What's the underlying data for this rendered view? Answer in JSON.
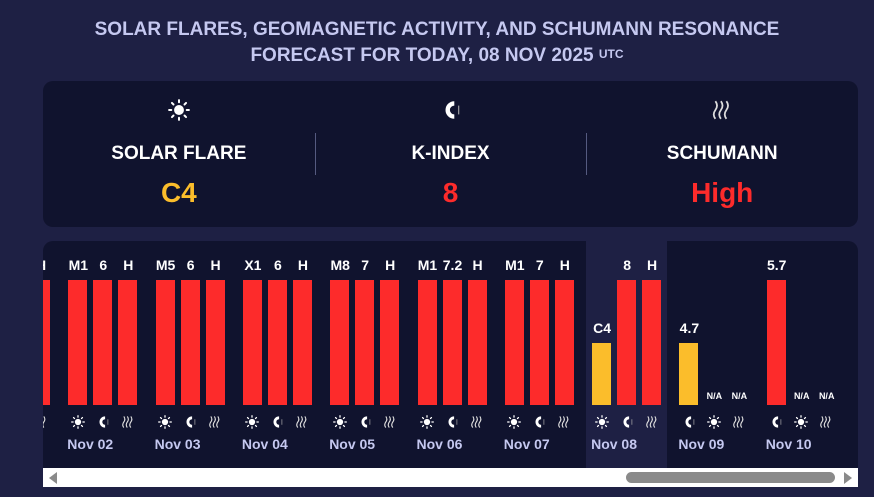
{
  "title": {
    "line1": "SOLAR FLARES, GEOMAGNETIC ACTIVITY, AND SCHUMANN RESONANCE",
    "line2": "FORECAST FOR TODAY, 08 NOV 2025",
    "tz": "UTC"
  },
  "summary": [
    {
      "icon": "sun-icon",
      "label": "SOLAR FLARE",
      "value": "C4",
      "color": "#fbbd2b"
    },
    {
      "icon": "magnet-icon",
      "label": "K-INDEX",
      "value": "8",
      "color": "#fd2b2b"
    },
    {
      "icon": "waves-icon",
      "label": "SCHUMANN",
      "value": "High",
      "color": "#fd2b2b"
    }
  ],
  "colors": {
    "red": "#fd2b2b",
    "yellow": "#fbbd2b"
  },
  "days": [
    {
      "date": "",
      "highlight": false,
      "bars": [
        {
          "type": "flare",
          "label": "",
          "level": 1,
          "color": "red"
        },
        {
          "type": "kindex",
          "label": "",
          "level": 1,
          "color": "red"
        },
        {
          "type": "schumann",
          "label": "H",
          "level": 1,
          "color": "red"
        }
      ]
    },
    {
      "date": "Nov 02",
      "highlight": false,
      "bars": [
        {
          "type": "flare",
          "label": "M1",
          "level": 1,
          "color": "red"
        },
        {
          "type": "kindex",
          "label": "6",
          "level": 1,
          "color": "red"
        },
        {
          "type": "schumann",
          "label": "H",
          "level": 1,
          "color": "red"
        }
      ]
    },
    {
      "date": "Nov 03",
      "highlight": false,
      "bars": [
        {
          "type": "flare",
          "label": "M5",
          "level": 1,
          "color": "red"
        },
        {
          "type": "kindex",
          "label": "6",
          "level": 1,
          "color": "red"
        },
        {
          "type": "schumann",
          "label": "H",
          "level": 1,
          "color": "red"
        }
      ]
    },
    {
      "date": "Nov 04",
      "highlight": false,
      "bars": [
        {
          "type": "flare",
          "label": "X1",
          "level": 1,
          "color": "red"
        },
        {
          "type": "kindex",
          "label": "6",
          "level": 1,
          "color": "red"
        },
        {
          "type": "schumann",
          "label": "H",
          "level": 1,
          "color": "red"
        }
      ]
    },
    {
      "date": "Nov 05",
      "highlight": false,
      "bars": [
        {
          "type": "flare",
          "label": "M8",
          "level": 1,
          "color": "red"
        },
        {
          "type": "kindex",
          "label": "7",
          "level": 1,
          "color": "red"
        },
        {
          "type": "schumann",
          "label": "H",
          "level": 1,
          "color": "red"
        }
      ]
    },
    {
      "date": "Nov 06",
      "highlight": false,
      "bars": [
        {
          "type": "flare",
          "label": "M1",
          "level": 1,
          "color": "red"
        },
        {
          "type": "kindex",
          "label": "7.2",
          "level": 1,
          "color": "red"
        },
        {
          "type": "schumann",
          "label": "H",
          "level": 1,
          "color": "red"
        }
      ]
    },
    {
      "date": "Nov 07",
      "highlight": false,
      "bars": [
        {
          "type": "flare",
          "label": "M1",
          "level": 1,
          "color": "red"
        },
        {
          "type": "kindex",
          "label": "7",
          "level": 1,
          "color": "red"
        },
        {
          "type": "schumann",
          "label": "H",
          "level": 1,
          "color": "red"
        }
      ]
    },
    {
      "date": "Nov 08",
      "highlight": true,
      "bars": [
        {
          "type": "flare",
          "label": "C4",
          "level": 0.5,
          "color": "yellow"
        },
        {
          "type": "kindex",
          "label": "8",
          "level": 1,
          "color": "red"
        },
        {
          "type": "schumann",
          "label": "H",
          "level": 1,
          "color": "red"
        }
      ]
    },
    {
      "date": "Nov 09",
      "highlight": false,
      "bars": [
        {
          "type": "kindex",
          "label": "4.7",
          "level": 0.5,
          "color": "yellow"
        },
        {
          "type": "flare",
          "label": "N/A",
          "level": 0,
          "color": "red"
        },
        {
          "type": "schumann",
          "label": "N/A",
          "level": 0,
          "color": "red"
        }
      ]
    },
    {
      "date": "Nov 10",
      "highlight": false,
      "bars": [
        {
          "type": "kindex",
          "label": "5.7",
          "level": 1,
          "color": "red"
        },
        {
          "type": "flare",
          "label": "N/A",
          "level": 0,
          "color": "red"
        },
        {
          "type": "schumann",
          "label": "N/A",
          "level": 0,
          "color": "red"
        }
      ]
    }
  ]
}
